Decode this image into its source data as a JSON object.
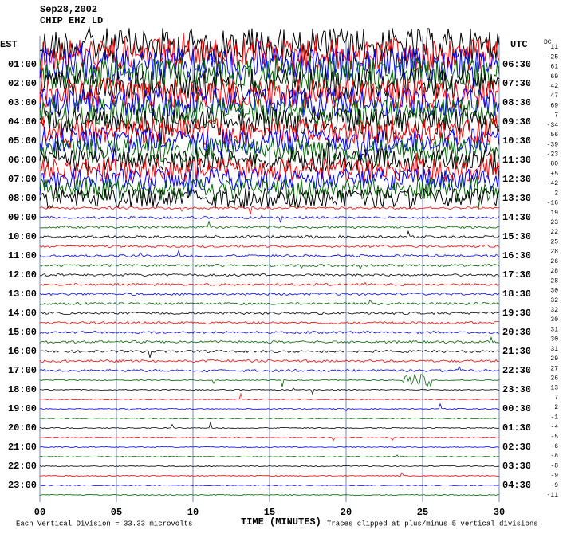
{
  "header": {
    "date": "Sep28,2002",
    "station": "CHIP EHZ LD"
  },
  "axes": {
    "left_title": "EST",
    "right_title": "UTC",
    "dc_title": "DC",
    "left_labels": [
      "01:00",
      "02:00",
      "03:00",
      "04:00",
      "05:00",
      "06:00",
      "07:00",
      "08:00",
      "09:00",
      "10:00",
      "11:00",
      "12:00",
      "13:00",
      "14:00",
      "15:00",
      "16:00",
      "17:00",
      "18:00",
      "19:00",
      "20:00",
      "21:00",
      "22:00",
      "23:00"
    ],
    "right_labels": [
      "06:30",
      "07:30",
      "08:30",
      "09:30",
      "10:30",
      "11:30",
      "12:30",
      "13:30",
      "14:30",
      "15:30",
      "16:30",
      "17:30",
      "18:30",
      "19:30",
      "20:30",
      "21:30",
      "22:30",
      "23:30",
      "00:30",
      "01:30",
      "02:30",
      "03:30",
      "04:30"
    ],
    "dc_values": [
      "11",
      "-25",
      "61",
      "69",
      "42",
      "47",
      "69",
      "7",
      "-34",
      "56",
      "-39",
      "-23",
      "80",
      "+5",
      "-42",
      "2",
      "-16",
      "19",
      "23",
      "22",
      "25",
      "28",
      "26",
      "28",
      "28",
      "30",
      "32",
      "32",
      "30",
      "31",
      "30",
      "31",
      "29",
      "27",
      "26",
      "13",
      "7",
      "2",
      "-1",
      "-4",
      "-5",
      "-6",
      "-8",
      "-8",
      "-9",
      "-9",
      "-11"
    ],
    "x_ticks": [
      "00",
      "05",
      "10",
      "15",
      "20",
      "25",
      "30"
    ],
    "x_title": "TIME (MINUTES)"
  },
  "footer": {
    "scale_label": "Each Vertical Division =",
    "scale_value": "33.33 microvolts",
    "clip": "Traces clipped at plus/minus 5 vertical divisions"
  }
}
